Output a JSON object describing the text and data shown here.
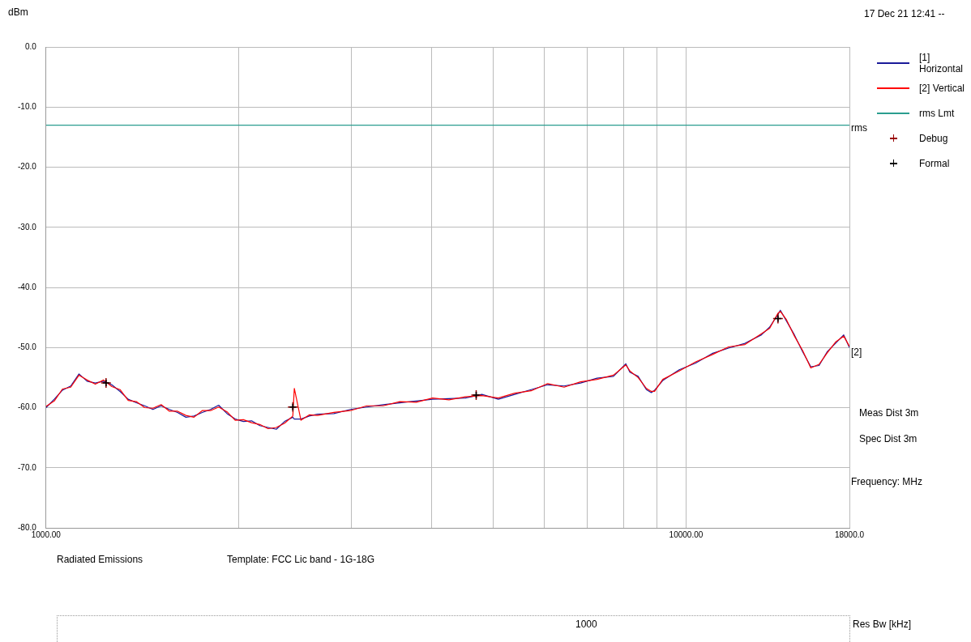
{
  "chart_data": {
    "type": "line",
    "xlabel": "Frequency: MHz",
    "ylabel": "dBm",
    "x": [
      1000,
      1030,
      1061,
      1093,
      1126,
      1159,
      1194,
      1230,
      1267,
      1305,
      1344,
      1384,
      1426,
      1469,
      1513,
      1559,
      1605,
      1654,
      1703,
      1754,
      1807,
      1861,
      1918,
      1975,
      2034,
      2095,
      2158,
      2223,
      2290,
      2359,
      2430,
      2443,
      2502,
      2578,
      2655,
      2817,
      2988,
      3171,
      3364,
      3569,
      3787,
      4017,
      4262,
      4522,
      4797,
      5090,
      5400,
      5729,
      6078,
      6449,
      6842,
      7259,
      7701,
      8051,
      8170,
      8417,
      8670,
      8826,
      8931,
      9196,
      9757,
      10351,
      10982,
      11651,
      12361,
      13115,
      13511,
      13916,
      14040,
      14337,
      14768,
      15212,
      15665,
      16136,
      16618,
      17122,
      17634,
      18000
    ],
    "series": [
      {
        "name": "[1] Horizontal",
        "color": "#1a1a99",
        "values": [
          -60.0,
          -58.6,
          -57.1,
          -56.4,
          -54.4,
          -55.6,
          -55.9,
          -55.6,
          -56.2,
          -57.3,
          -58.6,
          -59.2,
          -59.7,
          -60.3,
          -59.7,
          -60.3,
          -60.8,
          -61.6,
          -61.4,
          -60.8,
          -60.3,
          -59.6,
          -61.0,
          -61.9,
          -62.3,
          -62.2,
          -63.0,
          -63.3,
          -63.6,
          -62.3,
          -61.6,
          -61.9,
          -61.9,
          -61.4,
          -61.1,
          -61.0,
          -60.3,
          -59.9,
          -59.5,
          -59.2,
          -58.9,
          -58.6,
          -58.5,
          -58.4,
          -57.8,
          -58.6,
          -57.8,
          -57.0,
          -56.2,
          -56.4,
          -55.9,
          -55.1,
          -54.8,
          -52.7,
          -54.1,
          -54.8,
          -57.0,
          -57.5,
          -57.1,
          -55.5,
          -53.7,
          -52.6,
          -51.0,
          -50.1,
          -49.3,
          -47.9,
          -46.6,
          -44.5,
          -43.8,
          -45.5,
          -47.9,
          -50.7,
          -53.2,
          -53.0,
          -50.7,
          -49.3,
          -47.9,
          -50.0
        ]
      },
      {
        "name": "[2] Vertical",
        "color": "#ff0000",
        "values": [
          -59.8,
          -58.9,
          -56.9,
          -56.6,
          -54.6,
          -55.4,
          -56.1,
          -55.4,
          -56.5,
          -57.0,
          -58.8,
          -59.0,
          -60.0,
          -60.1,
          -59.5,
          -60.6,
          -60.6,
          -61.3,
          -61.6,
          -60.5,
          -60.5,
          -59.9,
          -60.7,
          -62.1,
          -62.0,
          -62.5,
          -62.8,
          -63.5,
          -63.3,
          -62.6,
          -61.4,
          -56.8,
          -62.1,
          -61.2,
          -61.3,
          -60.8,
          -60.5,
          -59.7,
          -59.7,
          -59.0,
          -59.1,
          -58.4,
          -58.7,
          -58.2,
          -58.0,
          -58.4,
          -57.6,
          -57.2,
          -56.0,
          -56.6,
          -55.7,
          -55.3,
          -54.6,
          -52.9,
          -53.9,
          -55.0,
          -56.8,
          -57.3,
          -57.3,
          -55.3,
          -53.9,
          -52.4,
          -51.2,
          -49.9,
          -49.5,
          -47.7,
          -46.8,
          -44.3,
          -44.0,
          -45.3,
          -48.1,
          -50.5,
          -53.4,
          -52.8,
          -50.9,
          -49.1,
          -48.1,
          -49.8
        ]
      },
      {
        "name": "rms Lmt",
        "color": "#2a9d8f",
        "x": [
          1000,
          18000
        ],
        "values": [
          -13.0,
          -13.0
        ]
      },
      {
        "name": "Debug",
        "type": "scatter",
        "marker": "cross",
        "color": "#990000",
        "x": [
          1241,
          2430,
          4700,
          13920
        ],
        "values": [
          -55.9,
          -59.9,
          -57.9,
          -45.2
        ]
      },
      {
        "name": "Formal",
        "type": "scatter",
        "marker": "cross",
        "color": "#000000",
        "x": [
          1241,
          2430,
          4700,
          13920
        ],
        "values": [
          -55.9,
          -59.9,
          -57.9,
          -45.2
        ]
      }
    ],
    "xlim": [
      1000,
      18000
    ],
    "ylim": [
      -80,
      0
    ],
    "log": "x",
    "xticks": [
      {
        "value": 1000,
        "label": "1000.00"
      },
      {
        "value": 2000,
        "label": null
      },
      {
        "value": 3000,
        "label": null
      },
      {
        "value": 4000,
        "label": null
      },
      {
        "value": 5000,
        "label": null
      },
      {
        "value": 6000,
        "label": null
      },
      {
        "value": 7000,
        "label": null
      },
      {
        "value": 8000,
        "label": null
      },
      {
        "value": 9000,
        "label": null
      },
      {
        "value": 10000,
        "label": "10000.00"
      },
      {
        "value": 18000,
        "label": "18000.0"
      }
    ],
    "yticks": [
      {
        "value": 0,
        "label": "0.0"
      },
      {
        "value": -10,
        "label": "-10.0"
      },
      {
        "value": -20,
        "label": "-20.0"
      },
      {
        "value": -30,
        "label": "-30.0"
      },
      {
        "value": -40,
        "label": "-40.0"
      },
      {
        "value": -50,
        "label": "-50.0"
      },
      {
        "value": -60,
        "label": "-60.0"
      },
      {
        "value": -70,
        "label": "-70.0"
      },
      {
        "value": -80,
        "label": "-80.0"
      }
    ],
    "grid": true,
    "legend": "right",
    "line_style": "solid",
    "annotations": [
      "17 Dec 21 12:41 --",
      "Meas Dist 3m",
      "Spec Dist 3m",
      "Radiated Emissions",
      "Template: FCC Lic band - 1G-18G",
      "1000",
      "Res Bw [kHz]",
      {
        "text": "rms",
        "x": 18000,
        "y": -13
      },
      "[2]"
    ]
  }
}
